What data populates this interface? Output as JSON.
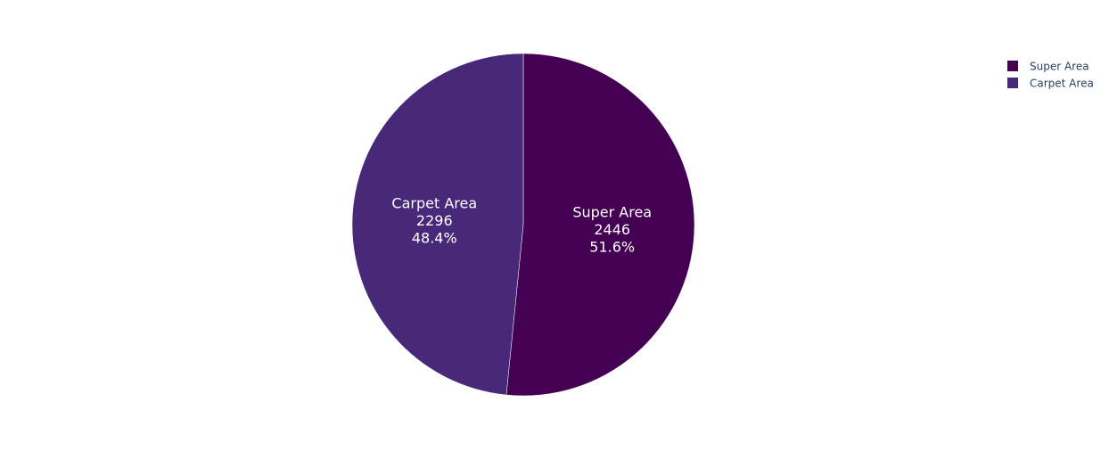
{
  "chart_data": {
    "type": "pie",
    "labels": [
      "Super Area",
      "Carpet Area"
    ],
    "values": [
      2446,
      2296
    ],
    "percent_labels": [
      "51.6%",
      "48.4%"
    ],
    "colors": [
      "#440154",
      "#482878"
    ],
    "legend_position": "top-right",
    "direction": "clockwise"
  }
}
